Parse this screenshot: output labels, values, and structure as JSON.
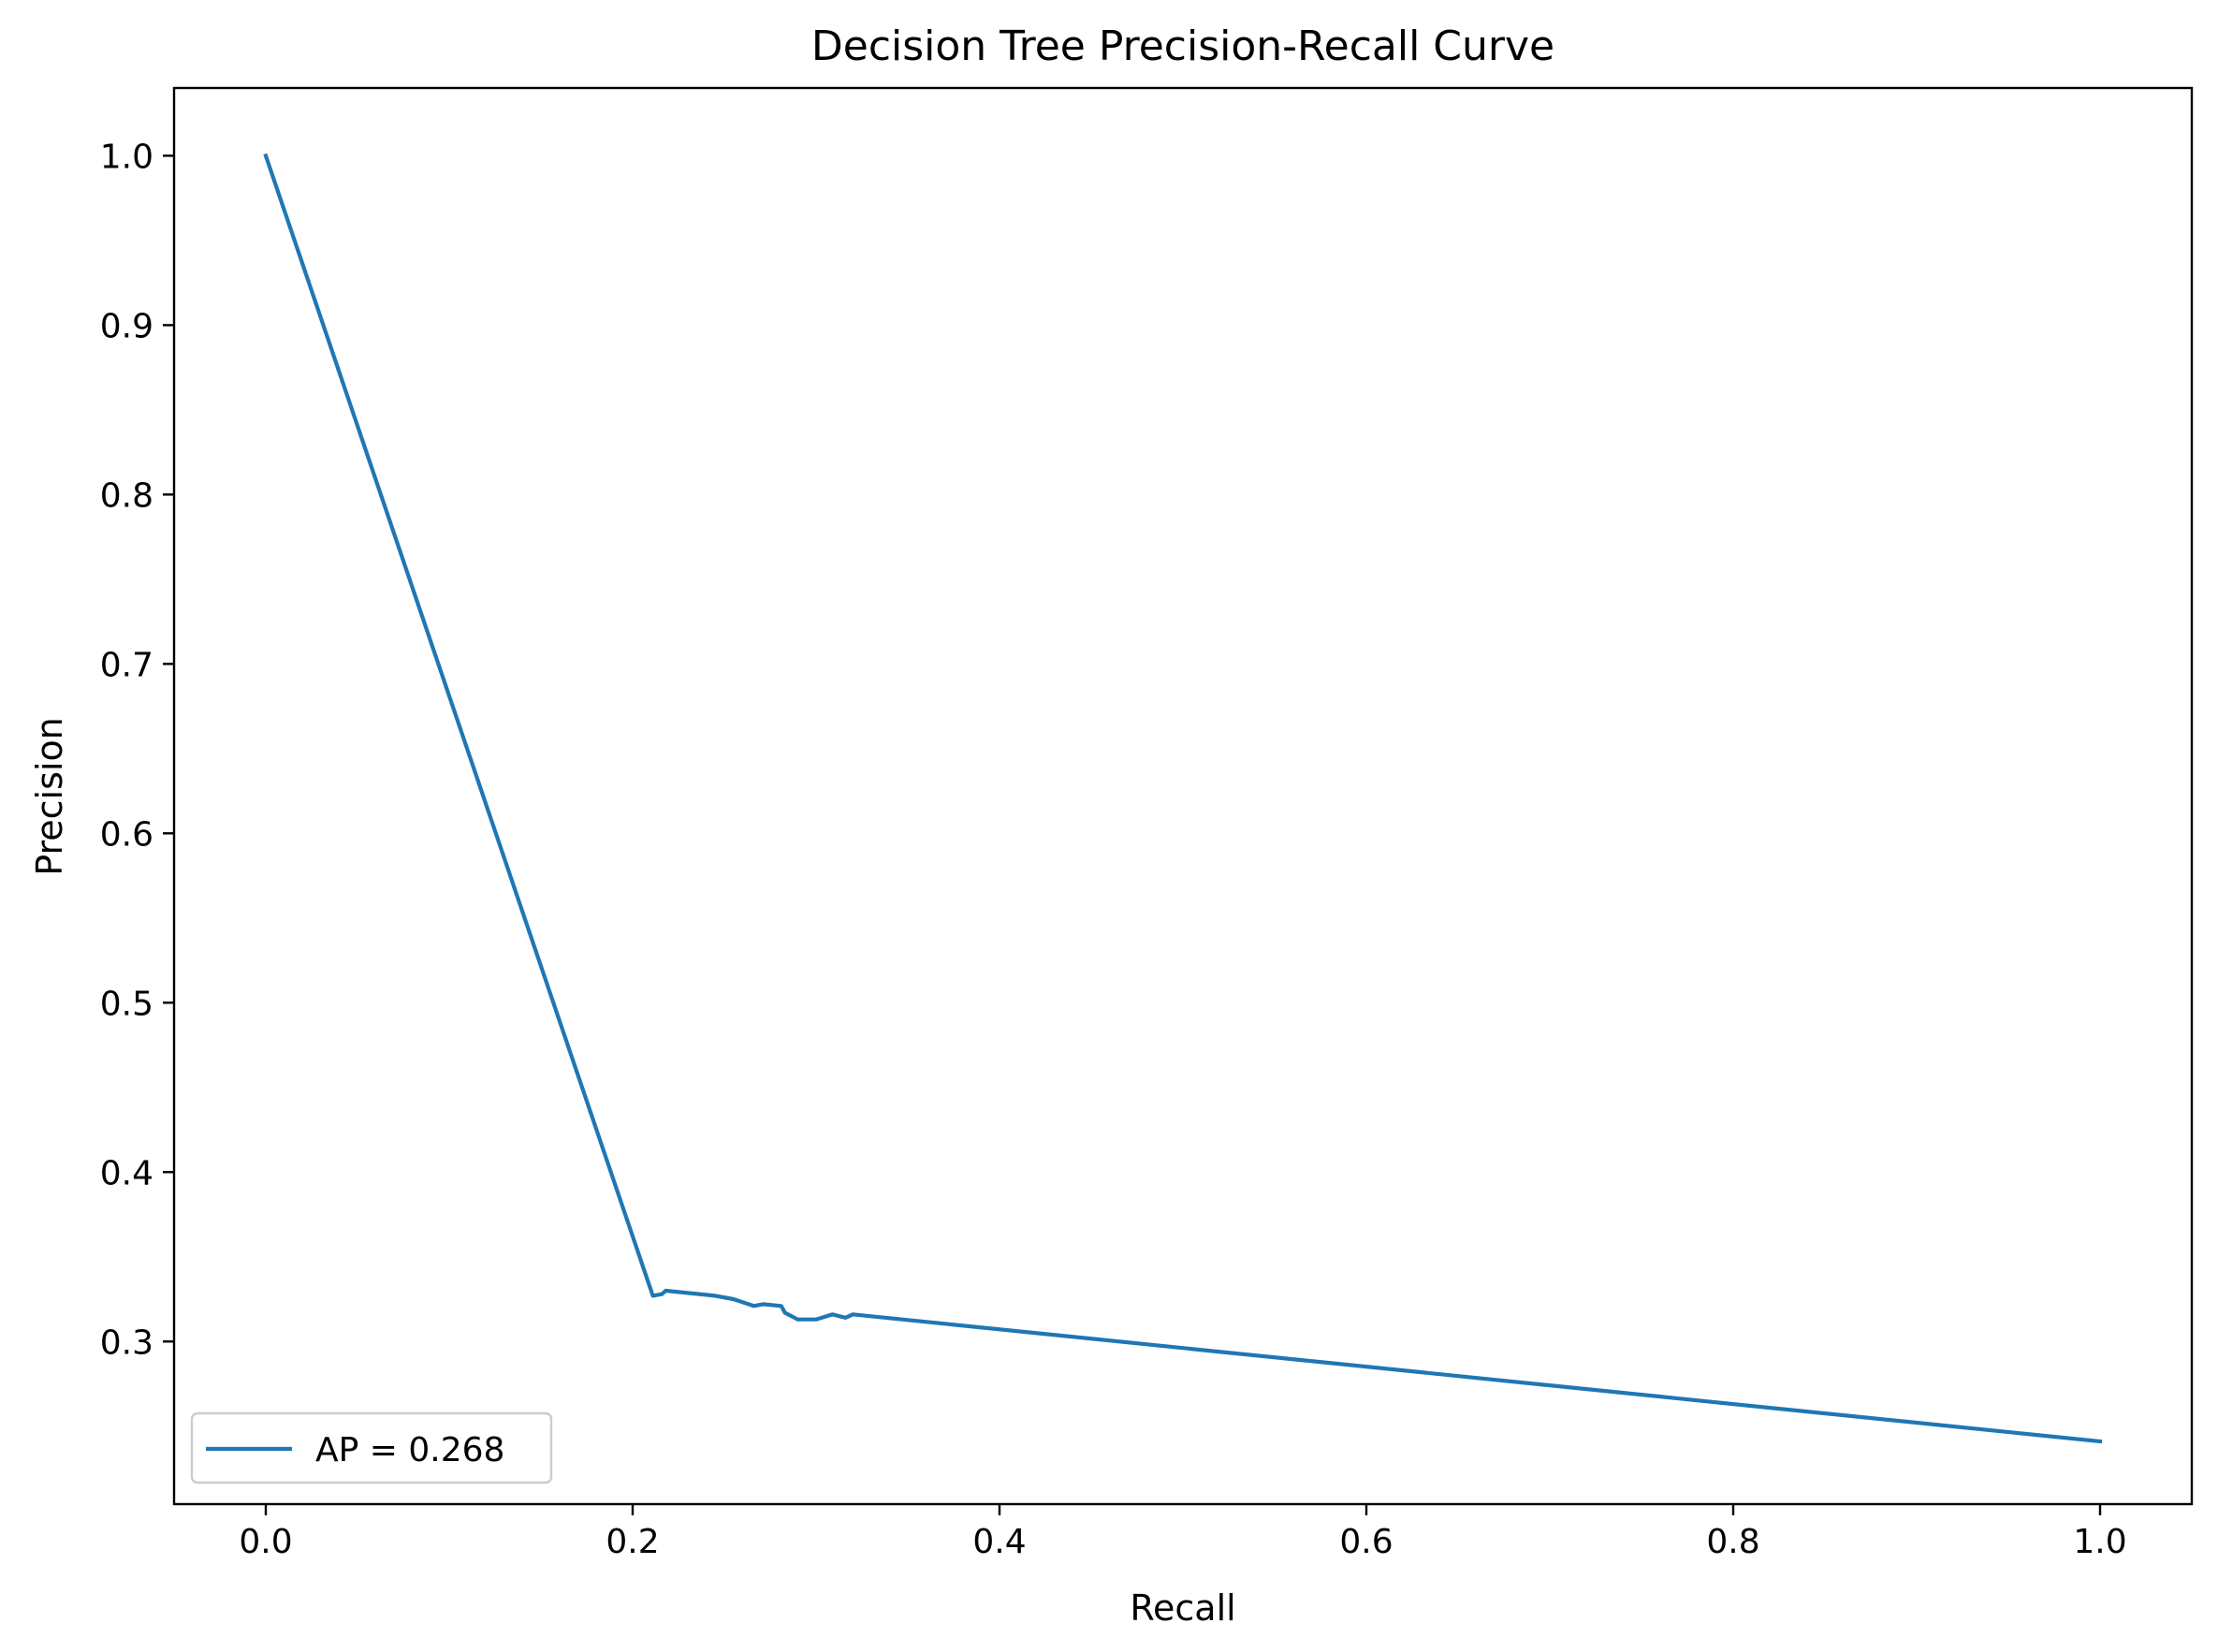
{
  "chart_data": {
    "type": "line",
    "title": "Decision Tree Precision-Recall Curve",
    "xlabel": "Recall",
    "ylabel": "Precision",
    "xlim": [
      -0.05,
      1.05
    ],
    "ylim": [
      0.204,
      1.04
    ],
    "x_ticks": [
      0.0,
      0.2,
      0.4,
      0.6,
      0.8,
      1.0
    ],
    "y_ticks": [
      0.3,
      0.4,
      0.5,
      0.6,
      0.7,
      0.8,
      0.9,
      1.0
    ],
    "x_tick_labels": [
      "0.0",
      "0.2",
      "0.4",
      "0.6",
      "0.8",
      "1.0"
    ],
    "y_tick_labels": [
      "0.3",
      "0.4",
      "0.5",
      "0.6",
      "0.7",
      "0.8",
      "0.9",
      "1.0"
    ],
    "grid": false,
    "legend_position": "lower-left",
    "series": [
      {
        "name": "AP = 0.268",
        "color": "#1f77b4",
        "points": [
          [
            0.0,
            1.0
          ],
          [
            0.211,
            0.327
          ],
          [
            0.216,
            0.328
          ],
          [
            0.218,
            0.33
          ],
          [
            0.245,
            0.327
          ],
          [
            0.255,
            0.325
          ],
          [
            0.266,
            0.321
          ],
          [
            0.271,
            0.322
          ],
          [
            0.281,
            0.321
          ],
          [
            0.283,
            0.317
          ],
          [
            0.29,
            0.313
          ],
          [
            0.3,
            0.313
          ],
          [
            0.309,
            0.316
          ],
          [
            0.316,
            0.314
          ],
          [
            0.32,
            0.316
          ],
          [
            1.0,
            0.241
          ]
        ]
      }
    ]
  }
}
